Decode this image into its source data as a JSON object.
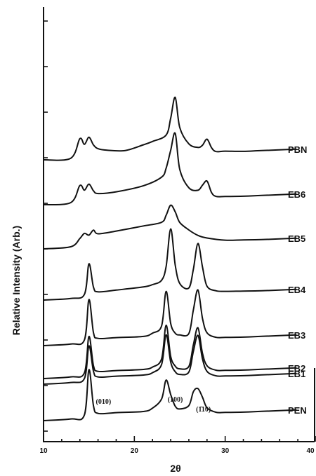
{
  "chart_data": {
    "type": "line",
    "xlabel": "2θ",
    "ylabel": "Relative Intensity (Arb.)",
    "xlim": [
      10,
      40
    ],
    "x_ticks": [
      "10",
      "20",
      "30",
      "40"
    ],
    "y_scale": "arbitrary, traces vertically offset",
    "annotations": [
      {
        "text": "(010)",
        "x": 16.6
      },
      {
        "text": "(100)",
        "x": 24.5
      },
      {
        "text": "(1̄10)",
        "x": 27.6
      }
    ],
    "series": [
      {
        "name": "PBN",
        "baseline": 0.5,
        "x": [
          10,
          13,
          14,
          14.5,
          15,
          15.5,
          16,
          17,
          19,
          21,
          22,
          23.5,
          24,
          24.5,
          25,
          26,
          27,
          27.5,
          28,
          28.5,
          29,
          30,
          32,
          34
        ],
        "y": [
          0.5,
          0.55,
          2.5,
          1.9,
          2.6,
          1.8,
          1.4,
          1.2,
          1.1,
          1.6,
          1.9,
          2.5,
          4.2,
          6.3,
          3.2,
          1.5,
          1.1,
          1.3,
          1.9,
          1.0,
          0.6,
          0.6,
          0.5,
          0.5
        ]
      },
      {
        "name": "EB6",
        "baseline": 0.5,
        "x": [
          10,
          13,
          14,
          14.5,
          15,
          15.5,
          16,
          18,
          21,
          23,
          23.5,
          24,
          24.5,
          25,
          26,
          27,
          27.5,
          28,
          28.5,
          29,
          30,
          32,
          34
        ],
        "y": [
          0.5,
          0.6,
          2.3,
          1.8,
          2.4,
          1.7,
          1.4,
          1.5,
          2.0,
          2.8,
          3.7,
          5.5,
          7.2,
          3.5,
          1.6,
          1.3,
          1.8,
          2.2,
          1.0,
          0.6,
          0.55,
          0.5,
          0.5
        ]
      },
      {
        "name": "EB5",
        "baseline": 0.5,
        "x": [
          10,
          13,
          14,
          14.5,
          15,
          15.5,
          16,
          18,
          21,
          23,
          23.5,
          24,
          24.5,
          25,
          26,
          27,
          28,
          30,
          32,
          34
        ],
        "y": [
          0.5,
          0.6,
          1.4,
          1.9,
          1.7,
          2.2,
          1.8,
          2.0,
          2.4,
          2.7,
          3.4,
          4.4,
          3.7,
          2.6,
          1.8,
          1.2,
          0.9,
          0.6,
          0.55,
          0.5
        ]
      },
      {
        "name": "EB4",
        "baseline": 0.5,
        "x": [
          10,
          13,
          14.5,
          15,
          15.5,
          16,
          18,
          21,
          22,
          23,
          23.5,
          24,
          24.5,
          25,
          26,
          26.5,
          27,
          27.5,
          28,
          29,
          30,
          32,
          34
        ],
        "y": [
          0.5,
          0.55,
          0.9,
          4.0,
          1.6,
          1.1,
          1.2,
          1.4,
          1.6,
          2.0,
          3.4,
          7.2,
          3.5,
          1.6,
          1.1,
          3.0,
          5.6,
          3.2,
          1.2,
          0.7,
          0.6,
          0.55,
          0.5
        ]
      },
      {
        "name": "EB3",
        "baseline": 0.5,
        "x": [
          10,
          13,
          14.5,
          15,
          15.5,
          16,
          18,
          21,
          22,
          23,
          23.5,
          24,
          24.5,
          25,
          26,
          26.5,
          27,
          27.5,
          28,
          29,
          30,
          32,
          34
        ],
        "y": [
          0.5,
          0.55,
          0.9,
          5.0,
          1.6,
          1.0,
          1.0,
          1.0,
          1.3,
          2.0,
          5.5,
          2.2,
          1.2,
          1.0,
          1.1,
          3.5,
          5.5,
          2.6,
          1.1,
          0.6,
          0.55,
          0.5,
          0.5
        ]
      },
      {
        "name": "EB2",
        "baseline": 0.5,
        "x": [
          10,
          13,
          14.5,
          15,
          15.5,
          16,
          18,
          21,
          22,
          23,
          23.5,
          24,
          24.5,
          25,
          26,
          26.5,
          27,
          27.5,
          28,
          29,
          30,
          32,
          34
        ],
        "y": [
          0.5,
          0.55,
          0.9,
          4.6,
          1.6,
          1.0,
          1.0,
          1.0,
          1.2,
          2.0,
          5.4,
          2.2,
          1.2,
          0.9,
          1.1,
          3.3,
          5.0,
          2.4,
          1.1,
          0.6,
          0.55,
          0.5,
          0.5
        ]
      },
      {
        "name": "EB1",
        "baseline": 0.5,
        "x": [
          10,
          13,
          14.5,
          15,
          15.5,
          16,
          18,
          21,
          22,
          23,
          23.5,
          24,
          24.5,
          25,
          26,
          26.5,
          27,
          27.5,
          28,
          29,
          30,
          32,
          34
        ],
        "y": [
          0.5,
          0.55,
          0.9,
          4.2,
          1.6,
          1.0,
          1.0,
          1.0,
          1.2,
          2.0,
          5.0,
          2.2,
          1.2,
          0.9,
          1.1,
          3.2,
          4.8,
          2.4,
          1.1,
          0.6,
          0.55,
          0.5,
          0.5
        ]
      },
      {
        "name": "PEN",
        "baseline": 0.5,
        "x": [
          10,
          13,
          14.5,
          15,
          15.5,
          16,
          18,
          21,
          22,
          23,
          23.5,
          24,
          24.5,
          25,
          26,
          26.5,
          27,
          27.5,
          28,
          29,
          30,
          32,
          34
        ],
        "y": [
          0.5,
          0.55,
          0.9,
          5.5,
          1.8,
          1.0,
          1.0,
          1.0,
          1.3,
          2.2,
          4.1,
          2.6,
          1.4,
          1.1,
          1.4,
          2.8,
          3.1,
          2.2,
          1.1,
          0.6,
          0.55,
          0.5,
          0.5
        ]
      }
    ]
  }
}
